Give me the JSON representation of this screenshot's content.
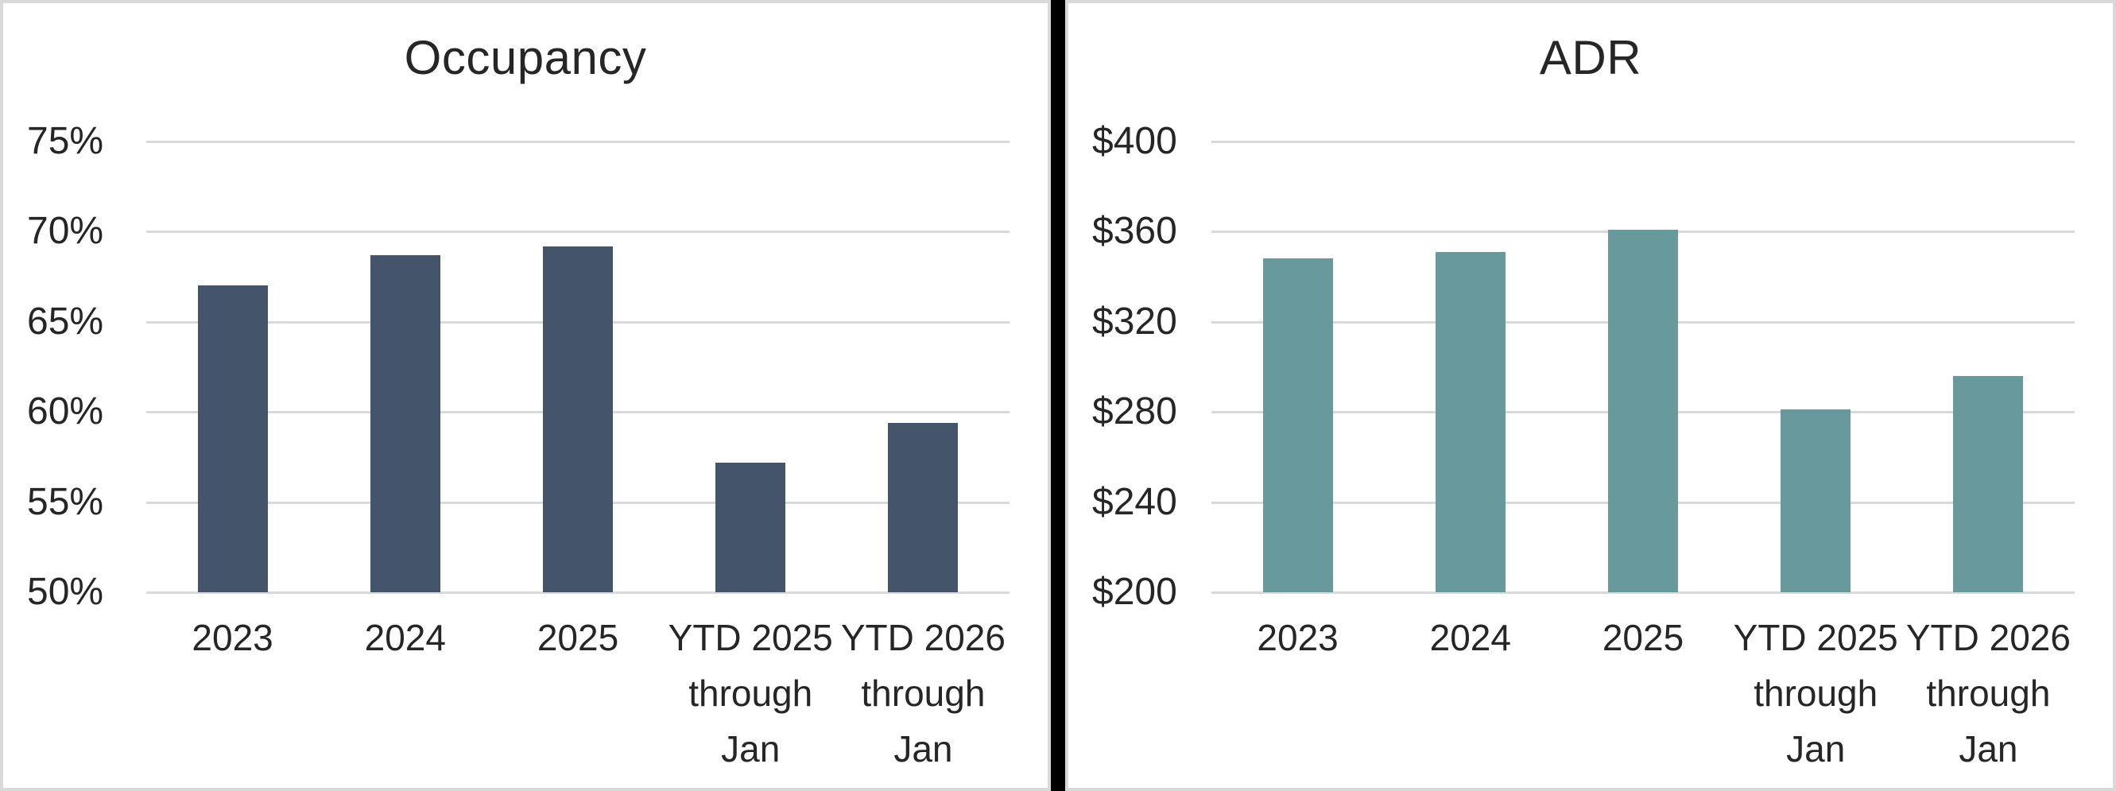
{
  "page": {
    "background": "#ffffff",
    "panel_border_color": "#d9d9d9",
    "divider_color": "#000000",
    "text_color": "#262626"
  },
  "chart_data": [
    {
      "type": "bar",
      "title": "Occupancy",
      "categories": [
        "2023",
        "2024",
        "2025",
        "YTD 2025\nthrough\nJan",
        "YTD 2026\nthrough\nJan"
      ],
      "values": [
        67.0,
        68.7,
        69.2,
        57.2,
        59.4
      ],
      "value_unit": "percent",
      "ylim": [
        50,
        75
      ],
      "yticks": [
        {
          "value": 75,
          "label": "75%"
        },
        {
          "value": 70,
          "label": "70%"
        },
        {
          "value": 65,
          "label": "65%"
        },
        {
          "value": 60,
          "label": "60%"
        },
        {
          "value": 55,
          "label": "55%"
        },
        {
          "value": 50,
          "label": "50%"
        }
      ],
      "xlabel": "",
      "ylabel": "",
      "bar_color": "#44546a",
      "gridline_color": "#d9d9d9",
      "grid": true,
      "legend": "none"
    },
    {
      "type": "bar",
      "title": "ADR",
      "categories": [
        "2023",
        "2024",
        "2025",
        "YTD 2025\nthrough\nJan",
        "YTD 2026\nthrough\nJan"
      ],
      "values": [
        348,
        351,
        361,
        281,
        296
      ],
      "value_unit": "USD",
      "ylim": [
        200,
        400
      ],
      "yticks": [
        {
          "value": 400,
          "label": "$400"
        },
        {
          "value": 360,
          "label": "$360"
        },
        {
          "value": 320,
          "label": "$320"
        },
        {
          "value": 280,
          "label": "$280"
        },
        {
          "value": 240,
          "label": "$240"
        },
        {
          "value": 200,
          "label": "$200"
        }
      ],
      "xlabel": "",
      "ylabel": "",
      "bar_color": "#68999d",
      "gridline_color": "#d9d9d9",
      "grid": true,
      "legend": "none"
    }
  ]
}
